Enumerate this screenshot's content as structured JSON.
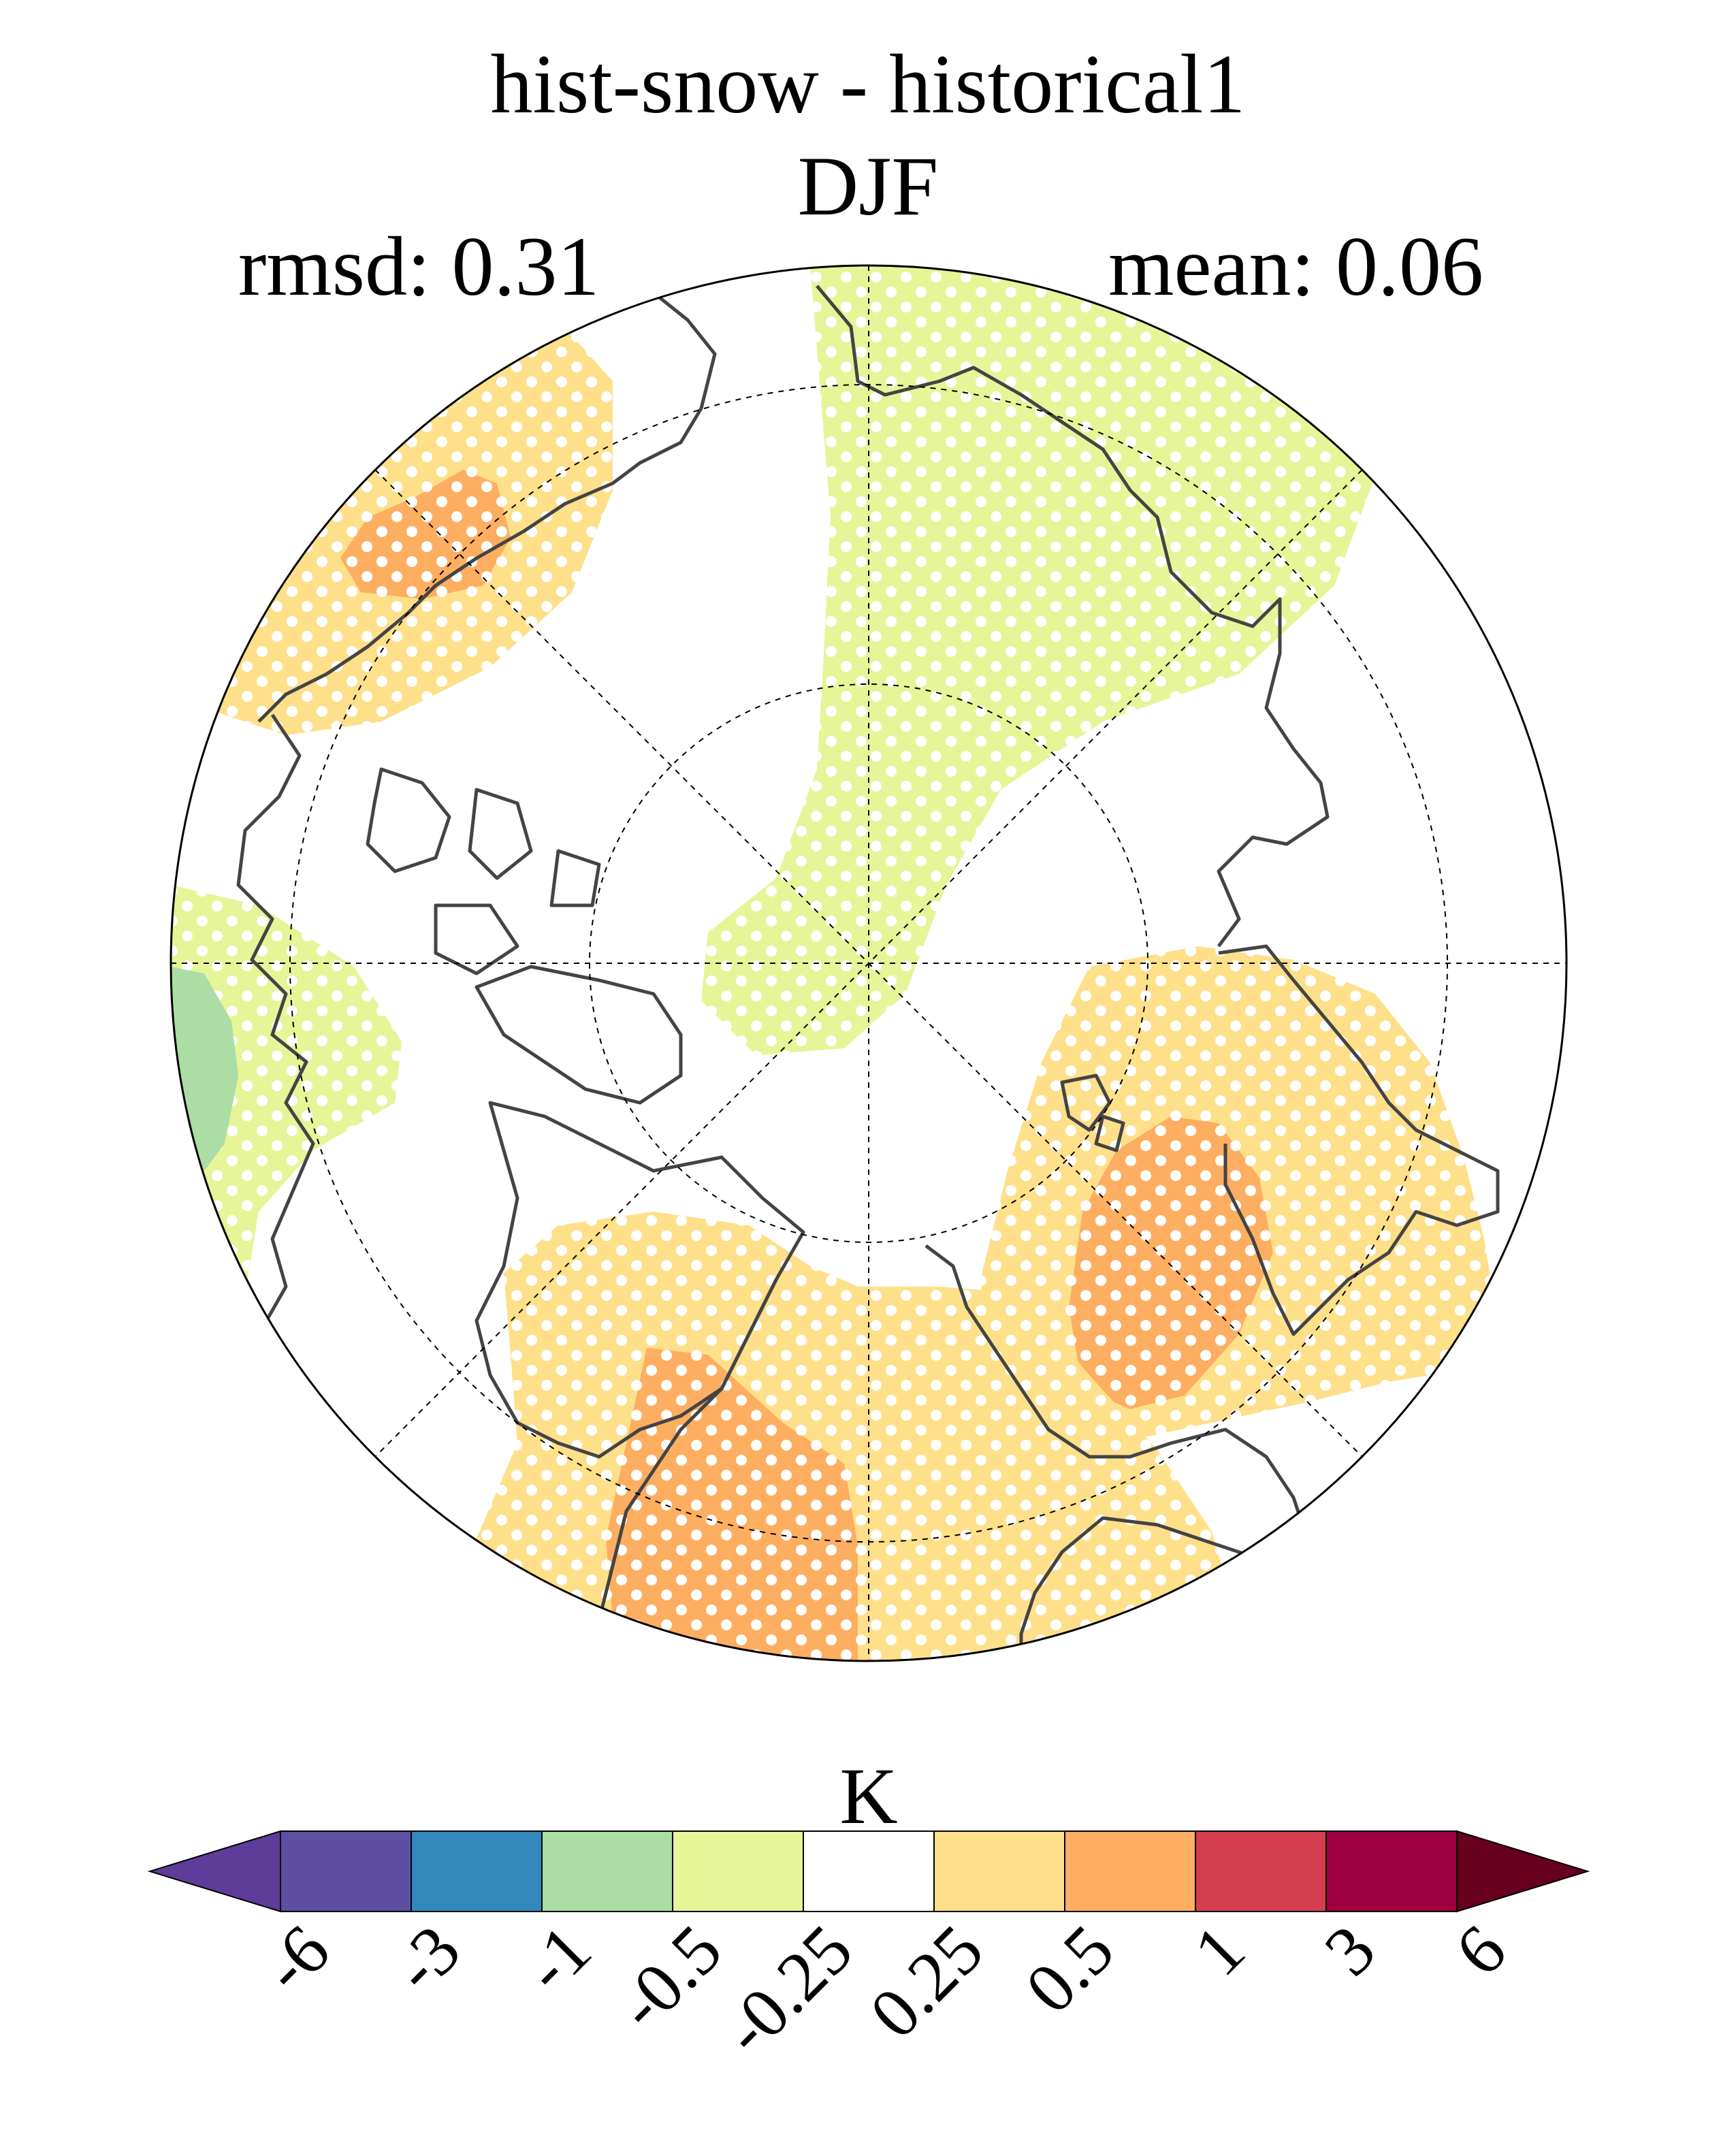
{
  "title": {
    "line1": "hist-snow - historical1",
    "line2": "DJF"
  },
  "stats": {
    "rmsd": "rmsd: 0.31",
    "mean": "mean: 0.06"
  },
  "colorbar": {
    "label": "K",
    "ticks": [
      "-6",
      "-3",
      "-1",
      "-0.5",
      "-0.25",
      "0.25",
      "0.5",
      "1",
      "3",
      "6"
    ],
    "colors": [
      "#5e3c99",
      "#5e4fa2",
      "#3288bd",
      "#abdda4",
      "#e6f598",
      "#ffffff",
      "#fee08b",
      "#fdae61",
      "#d53e4f",
      "#9e0142",
      "#67001f"
    ]
  },
  "map_data": {
    "projection": "north-polar-stereographic",
    "graticule": {
      "latitudes": [
        60,
        75
      ],
      "meridian_spacing_deg": 45
    },
    "hatching": "white dots mark statistically significant regions",
    "anomaly_regions": [
      {
        "region": "North Pacific / Alaska coast",
        "class": "0.25 to 0.5",
        "color": "#fee08b"
      },
      {
        "region": "Gulf of Alaska core",
        "class": "0.5 to 1",
        "color": "#fdae61"
      },
      {
        "region": "Siberia / East Asia (upper sector)",
        "class": "-0.5 to -0.25",
        "color": "#e6f598"
      },
      {
        "region": "Arctic Ocean tongue",
        "class": "-0.5 to -0.25",
        "color": "#e6f598"
      },
      {
        "region": "Eastern Europe / Scandinavia",
        "class": "0.25 to 0.5",
        "color": "#fee08b"
      },
      {
        "region": "Scandinavia core",
        "class": "0.5 to 1",
        "color": "#fdae61"
      },
      {
        "region": "Greenland / North Atlantic",
        "class": "0.25 to 0.5",
        "color": "#fee08b"
      },
      {
        "region": "Labrador / Davis Strait core",
        "class": "0.5 to 1",
        "color": "#fdae61"
      },
      {
        "region": "Western North America edge",
        "class": "-0.5 to -0.25",
        "color": "#e6f598"
      },
      {
        "region": "Western North America edge core",
        "class": "-1 to -0.5",
        "color": "#abdda4"
      }
    ]
  }
}
